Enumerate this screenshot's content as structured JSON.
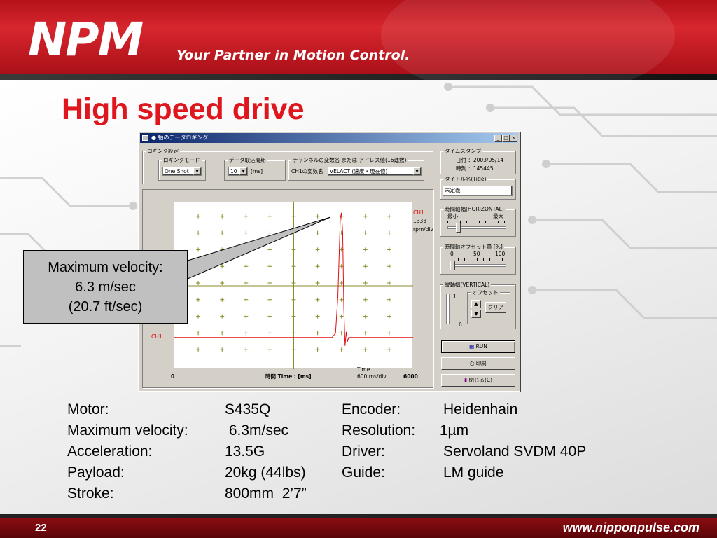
{
  "header": {
    "logo": "NPM",
    "tagline": "Your Partner in Motion Control."
  },
  "slide": {
    "title": "High speed drive"
  },
  "window": {
    "title": "● 軸のデータロギング",
    "logging_group": {
      "label": "ロギング設定",
      "mode_label": "ロギングモード",
      "mode_value": "One Shot",
      "period_label": "データ取込周期",
      "period_value": "10",
      "period_unit": "[ms]",
      "channel_label": "チャンネルの変数名 または アドレス値(16進数)",
      "ch1_label": "CH1の変数名",
      "ch1_value": "VELACT (速度・現在値)"
    },
    "timestamp": {
      "label": "タイムスタンプ",
      "date": "日付 ：2003/05/14",
      "time": "時刻 ：145445"
    },
    "title_group": {
      "label": "タイトル名(Title)",
      "value": "未定義"
    },
    "horizontal": {
      "label": "時間軸幅(HORIZONTAL)",
      "min_label": "最小",
      "max_label": "最大",
      "level": 0.15
    },
    "offset": {
      "label": "時間軸オフセット量 [%]",
      "scale": [
        "0",
        "50",
        "100"
      ],
      "level": 0.0
    },
    "vertical": {
      "label": "縦軸幅(VERTICAL)",
      "offset_label": "オフセット",
      "scale_top": "1",
      "scale_bottom": "6",
      "clear_label": "クリア"
    },
    "buttons": {
      "run": "RUN",
      "print": "印刷",
      "close": "閉じる(C)"
    },
    "plot": {
      "ch_label_top": "CH1",
      "scale_value": "1333",
      "scale_unit": "rpm/div",
      "ch_label_left": "CH1",
      "x_start": "0",
      "x_end": "6000",
      "time_axis_label": "時間 Time : [ms]",
      "time_word": "Time",
      "time_per_div": "600 ms/div"
    }
  },
  "callout": {
    "line1": "Maximum velocity:",
    "line2": "6.3 m/sec",
    "line3": "(20.7 ft/sec)"
  },
  "specs": {
    "left": [
      {
        "label": "Motor:",
        "value": "S435Q"
      },
      {
        "label": "Maximum velocity:",
        "value": " 6.3m/sec"
      },
      {
        "label": "Acceleration:",
        "value": "13.5G"
      },
      {
        "label": "Payload:",
        "value": "20kg (44lbs)"
      },
      {
        "label": "Stroke:",
        "value": "800mm  2’7”"
      }
    ],
    "right": [
      {
        "label": "Encoder:",
        "value": "Heidenhain"
      },
      {
        "label": "Resolution:",
        "value": " 1µm"
      },
      {
        "label": "Driver:",
        "value": "Servoland SVDM 40P"
      },
      {
        "label": "Guide:",
        "value": "LM guide"
      }
    ]
  },
  "footer": {
    "page_number": "22",
    "url": "www.nipponpulse.com"
  },
  "colors": {
    "brand_red": "#d7262e",
    "title_red": "#e0161e",
    "trace_red": "#e01010",
    "grid_olive": "#8a8a28"
  }
}
